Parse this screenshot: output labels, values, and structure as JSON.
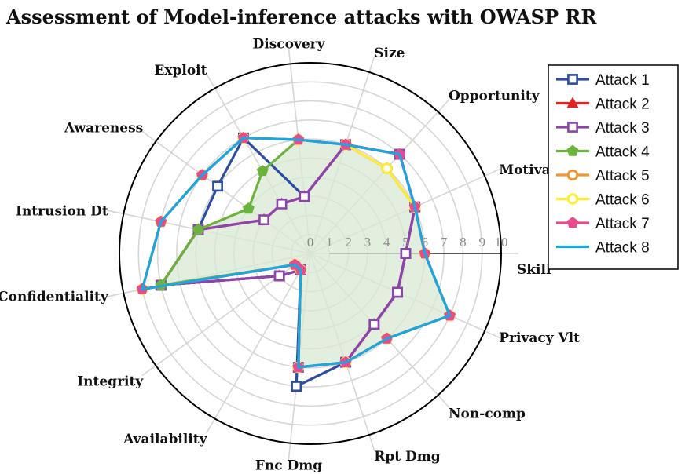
{
  "chart_data": {
    "type": "radar",
    "title": "Assessment of Model-inference attacks with OWASP RR",
    "axes": [
      "Skill",
      "Motivation",
      "Opportunity",
      "Size",
      "Discovery",
      "Exploit",
      "Awareness",
      "Intrusion Dt",
      "Confidentiality",
      "Integrity",
      "Availability",
      "Fnc Dmg",
      "Rpt Dmg",
      "Non-comp",
      "Privacy Vlt"
    ],
    "rlim": [
      0,
      10
    ],
    "r_ticks": [
      "0",
      "1",
      "2",
      "3",
      "4",
      "5",
      "6",
      "7",
      "8",
      "9",
      "10"
    ],
    "legend_position": "top-right",
    "fill_series": "Attack 4",
    "fill_color": "#d9ead3",
    "series": [
      {
        "name": "Attack 1",
        "color": "#2e4da0",
        "marker": "square",
        "values": [
          5,
          6,
          7,
          6,
          3,
          7,
          6,
          6,
          8,
          2,
          1,
          7,
          6,
          5,
          5
        ]
      },
      {
        "name": "Attack 2",
        "color": "#e02424",
        "marker": "triangle",
        "values": [
          5,
          6,
          7,
          6,
          3,
          3,
          3,
          6,
          8,
          2,
          1,
          6,
          6,
          5,
          5
        ]
      },
      {
        "name": "Attack 3",
        "color": "#8e44ad",
        "marker": "square",
        "values": [
          5,
          6,
          7,
          6,
          3,
          3,
          3,
          6,
          8,
          2,
          1,
          6,
          6,
          5,
          5
        ]
      },
      {
        "name": "Attack 4",
        "color": "#6cb33e",
        "marker": "pentagon",
        "values": [
          6,
          6,
          6,
          6,
          6,
          5,
          4,
          6,
          8,
          1,
          1,
          6,
          6,
          6,
          8
        ]
      },
      {
        "name": "Attack 5",
        "color": "#f0962e",
        "marker": "circle",
        "values": [
          6,
          6,
          6,
          6,
          6,
          7,
          7,
          8,
          9,
          1,
          1,
          6,
          6,
          6,
          8
        ]
      },
      {
        "name": "Attack 6",
        "color": "#ffeb38",
        "marker": "circle",
        "values": [
          6,
          6,
          6,
          6,
          6,
          7,
          7,
          8,
          9,
          1,
          1,
          6,
          6,
          6,
          8
        ]
      },
      {
        "name": "Attack 7",
        "color": "#e84a8e",
        "marker": "pentagon",
        "values": [
          6,
          6,
          7,
          6,
          6,
          7,
          7,
          8,
          9,
          1,
          1,
          6,
          6,
          6,
          8
        ]
      },
      {
        "name": "Attack 8",
        "color": "#1aa7e0",
        "marker": "none",
        "values": [
          6,
          6,
          7,
          6,
          6,
          7,
          7,
          8,
          9,
          1,
          1,
          6,
          6,
          6,
          8
        ]
      }
    ]
  }
}
